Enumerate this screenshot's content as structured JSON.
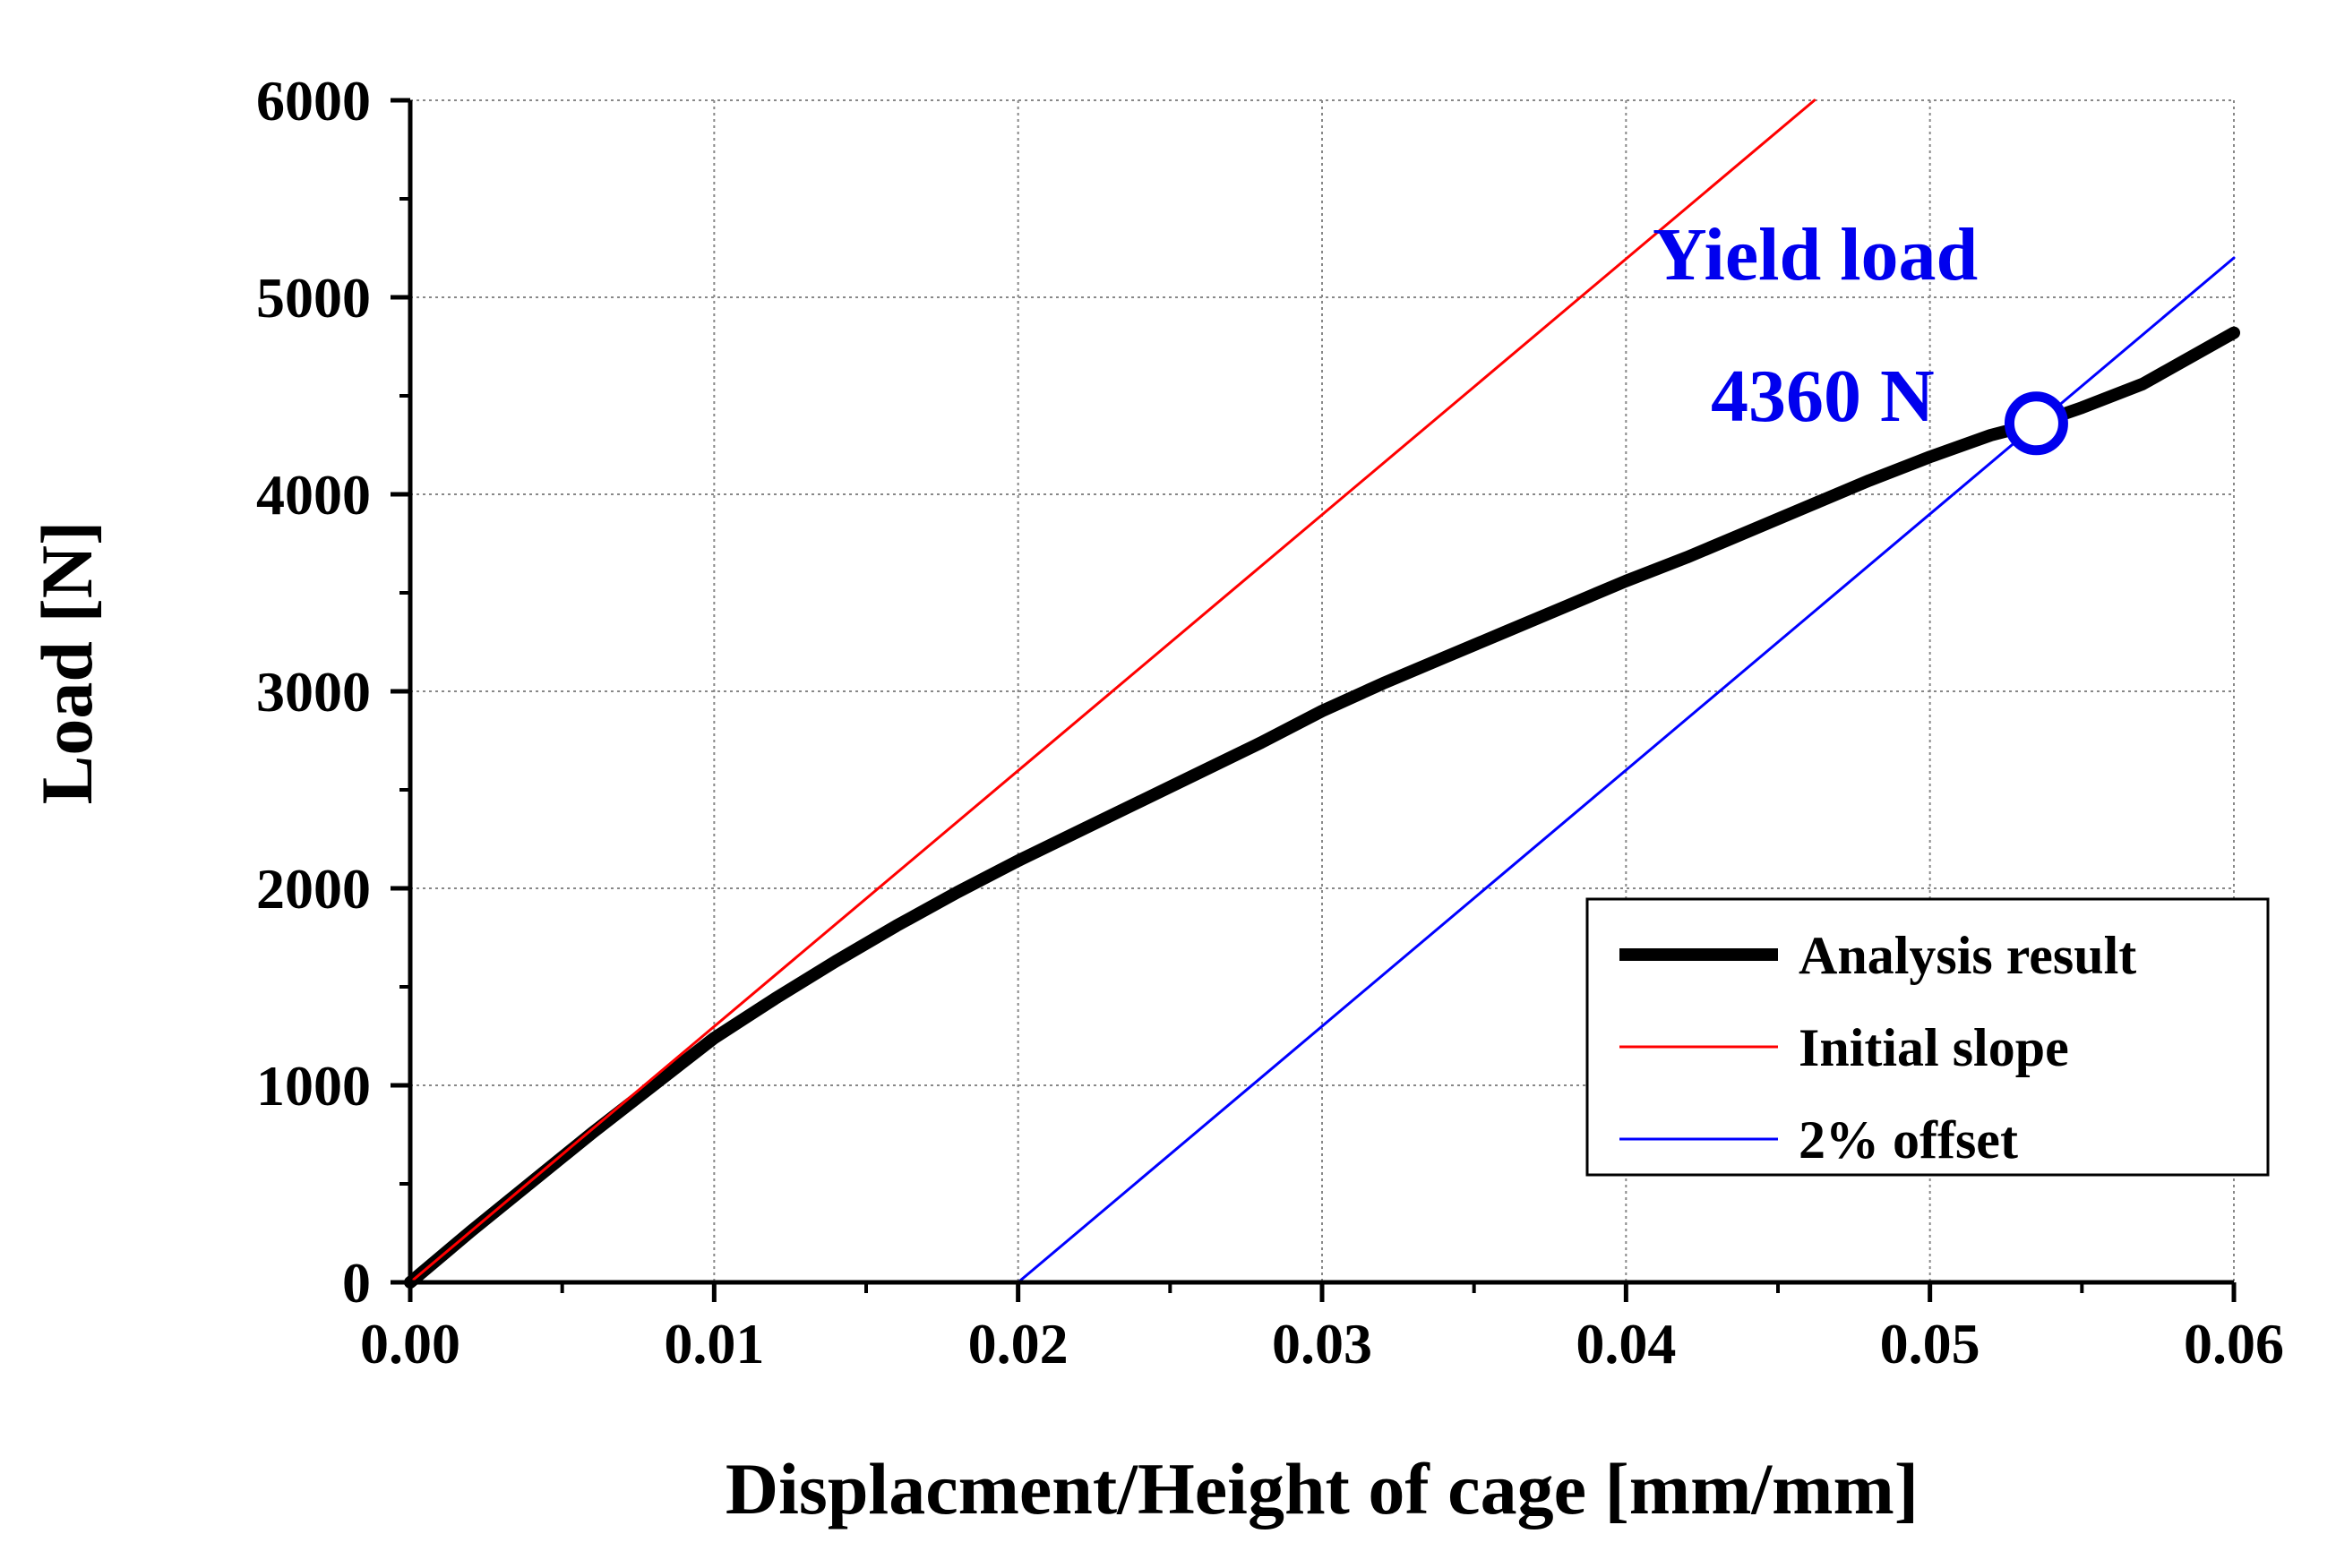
{
  "chart_data": {
    "type": "line",
    "title": "",
    "xlabel": "Displacment/Height of cage [mm/mm]",
    "ylabel": "Load [N]",
    "xlim": [
      0,
      0.06
    ],
    "ylim": [
      0,
      6000
    ],
    "x_ticks": [
      0,
      0.01,
      0.02,
      0.03,
      0.04,
      0.05,
      0.06
    ],
    "x_tick_labels": [
      "0.00",
      "0.01",
      "0.02",
      "0.03",
      "0.04",
      "0.05",
      "0.06"
    ],
    "y_ticks": [
      0,
      1000,
      2000,
      3000,
      4000,
      5000,
      6000
    ],
    "y_tick_labels": [
      "0",
      "1000",
      "2000",
      "3000",
      "4000",
      "5000",
      "6000"
    ],
    "grid": true,
    "legend_position": "bottom-right",
    "series": [
      {
        "name": "Analysis result",
        "color": "#000000",
        "style": "thick",
        "x": [
          0,
          0.002,
          0.004,
          0.006,
          0.008,
          0.01,
          0.012,
          0.014,
          0.016,
          0.018,
          0.02,
          0.022,
          0.024,
          0.026,
          0.028,
          0.03,
          0.032,
          0.034,
          0.036,
          0.038,
          0.04,
          0.042,
          0.044,
          0.046,
          0.048,
          0.05,
          0.052,
          0.0535,
          0.055,
          0.057,
          0.06
        ],
        "y": [
          0,
          260,
          510,
          760,
          1000,
          1240,
          1440,
          1630,
          1810,
          1980,
          2140,
          2290,
          2440,
          2590,
          2740,
          2900,
          3040,
          3170,
          3300,
          3430,
          3560,
          3680,
          3810,
          3940,
          4070,
          4190,
          4300,
          4360,
          4440,
          4560,
          4820
        ]
      },
      {
        "name": "Initial slope",
        "color": "#ff0000",
        "style": "thin",
        "x": [
          0,
          0.0462
        ],
        "y": [
          0,
          6000
        ]
      },
      {
        "name": "2% offset",
        "color": "#0000ff",
        "style": "thin",
        "x": [
          0.02,
          0.06
        ],
        "y": [
          0,
          5200
        ]
      }
    ],
    "annotations": {
      "line1": "Yield  load",
      "line2": "4360  N",
      "marker_x": 0.0535,
      "marker_y": 4360,
      "color": "#0000ee"
    }
  }
}
